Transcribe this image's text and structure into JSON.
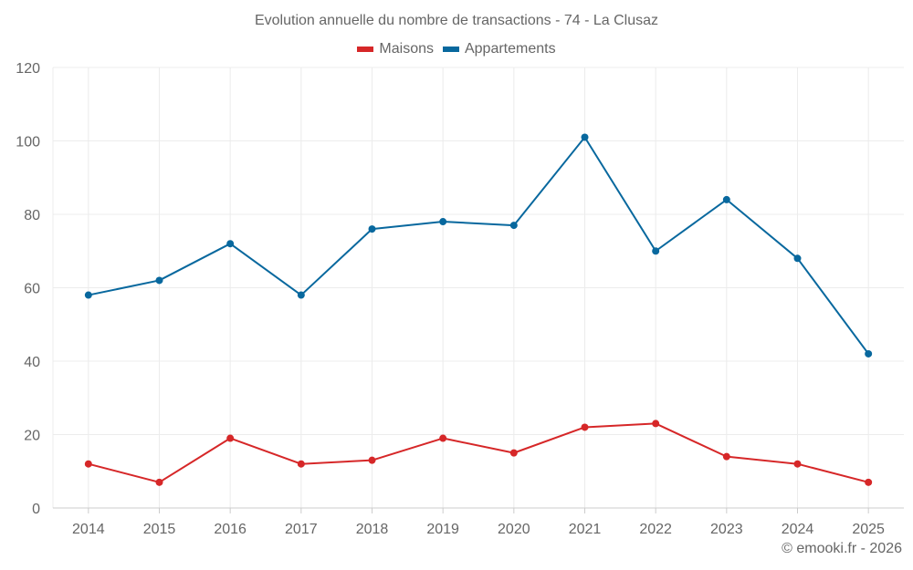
{
  "chart_data": {
    "type": "line",
    "title": "Evolution annuelle du nombre de transactions - 74 - La Clusaz",
    "xlabel": "",
    "ylabel": "",
    "categories": [
      "2014",
      "2015",
      "2016",
      "2017",
      "2018",
      "2019",
      "2020",
      "2021",
      "2022",
      "2023",
      "2024",
      "2025"
    ],
    "series": [
      {
        "name": "Maisons",
        "color": "#d62728",
        "values": [
          12,
          7,
          19,
          12,
          13,
          19,
          15,
          22,
          23,
          14,
          12,
          7
        ]
      },
      {
        "name": "Appartements",
        "color": "#08689e",
        "values": [
          58,
          62,
          72,
          58,
          76,
          78,
          77,
          101,
          70,
          84,
          68,
          42
        ]
      }
    ],
    "ylim": [
      0,
      120
    ],
    "yticks": [
      0,
      20,
      40,
      60,
      80,
      100,
      120
    ],
    "grid": true,
    "legend_position": "top-center"
  },
  "credits": "© emooki.fr - 2026"
}
